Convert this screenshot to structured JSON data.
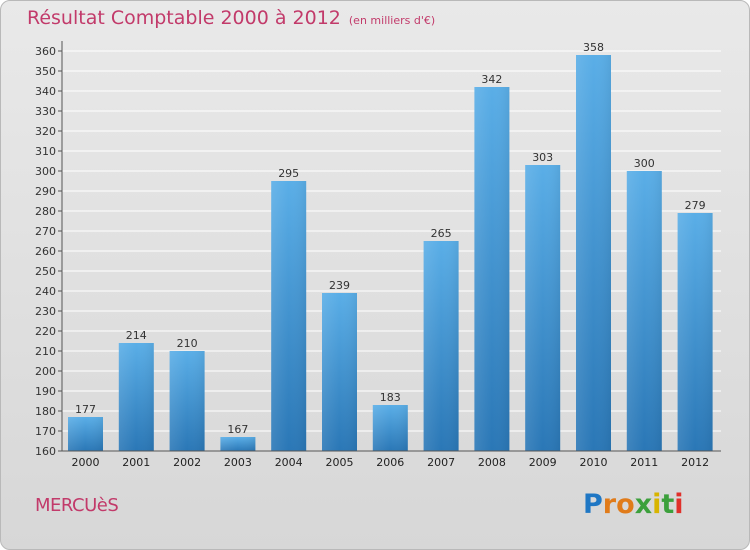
{
  "chart_data": {
    "type": "bar",
    "title": "Résultat Comptable 2000 à 2012",
    "subtitle": "(en milliers d'€)",
    "categories": [
      "2000",
      "2001",
      "2002",
      "2003",
      "2004",
      "2005",
      "2006",
      "2007",
      "2008",
      "2009",
      "2010",
      "2011",
      "2012"
    ],
    "values": [
      177,
      214,
      210,
      167,
      295,
      239,
      183,
      265,
      342,
      303,
      358,
      300,
      279
    ],
    "ylim": [
      160,
      360
    ],
    "ytick_step": 10,
    "xlabel": "",
    "ylabel": "",
    "grid": true
  },
  "footer": {
    "town": "MERCUèS",
    "brand": "Proxiti"
  },
  "colors": {
    "title": "#c23a6a",
    "bar_top": "#5aaee7",
    "bar_bottom": "#2a77b6",
    "grid": "#ffffff"
  }
}
